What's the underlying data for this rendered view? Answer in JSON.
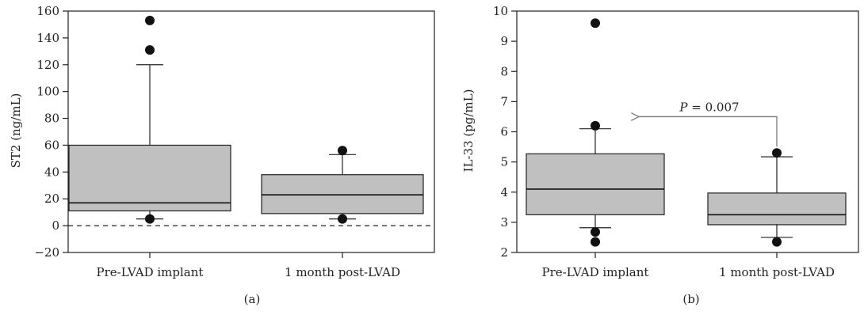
{
  "chart_data": [
    {
      "type": "box",
      "panel_label": "(a)",
      "ylabel": "ST2 (ng/mL)",
      "ylim": [
        -20,
        160
      ],
      "yticks": [
        -20,
        0,
        20,
        40,
        60,
        80,
        100,
        120,
        140,
        160
      ],
      "categories": [
        "Pre-LVAD implant",
        "1 month post-LVAD"
      ],
      "reference_line": {
        "y": 0,
        "style": "dashed"
      },
      "boxes": [
        {
          "category": "Pre-LVAD implant",
          "whisker_low": 5,
          "q1": 11,
          "median": 17,
          "q3": 60,
          "whisker_high": 120,
          "outliers": [
            5,
            131,
            153
          ]
        },
        {
          "category": "1 month post-LVAD",
          "whisker_low": 5,
          "q1": 9,
          "median": 23,
          "q3": 38,
          "whisker_high": 53,
          "outliers": [
            5,
            56
          ]
        }
      ],
      "box_color": "#c0c0c0"
    },
    {
      "type": "box",
      "panel_label": "(b)",
      "ylabel": "IL-33 (pg/mL)",
      "ylim": [
        2,
        10
      ],
      "yticks": [
        2,
        3,
        4,
        5,
        6,
        7,
        8,
        9,
        10
      ],
      "categories": [
        "Pre-LVAD implant",
        "1 month post-LVAD"
      ],
      "boxes": [
        {
          "category": "Pre-LVAD implant",
          "whisker_low": 2.82,
          "q1": 3.25,
          "median": 4.1,
          "q3": 5.27,
          "whisker_high": 6.1,
          "outliers": [
            2.35,
            2.68,
            6.2,
            9.6
          ]
        },
        {
          "category": "1 month post-LVAD",
          "whisker_low": 2.5,
          "q1": 2.92,
          "median": 3.25,
          "q3": 3.97,
          "whisker_high": 5.17,
          "outliers": [
            2.35,
            5.3
          ]
        }
      ],
      "annotation": {
        "p_label": "P",
        "equals": " = 0.007",
        "arrow_y": 6.5
      },
      "box_color": "#c0c0c0"
    }
  ]
}
